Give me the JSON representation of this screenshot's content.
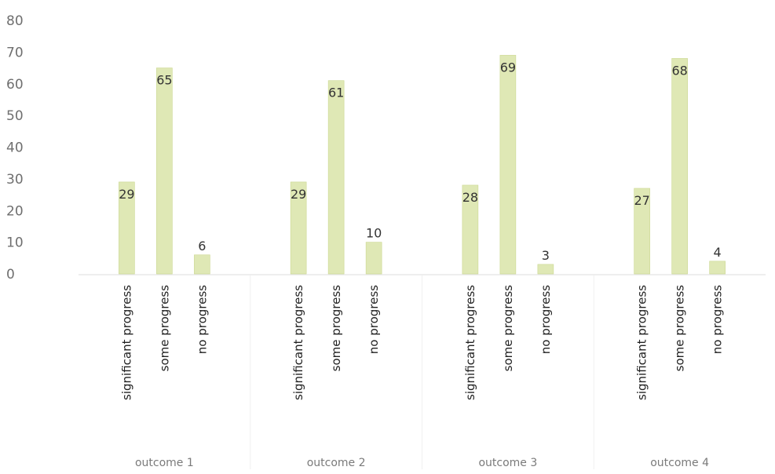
{
  "chart_data": {
    "type": "bar",
    "title": "",
    "xlabel": "",
    "ylabel": "",
    "ylim": [
      0,
      80
    ],
    "yticks": [
      0,
      10,
      20,
      30,
      40,
      50,
      60,
      70,
      80
    ],
    "grid": false,
    "legend": "none",
    "groups": [
      {
        "name": "outcome 1",
        "categories": [
          "significant progress",
          "some progress",
          "no progress"
        ],
        "values": [
          29,
          65,
          6
        ]
      },
      {
        "name": "outcome 2",
        "categories": [
          "significant progress",
          "some progress",
          "no progress"
        ],
        "values": [
          29,
          61,
          10
        ]
      },
      {
        "name": "outcome 3",
        "categories": [
          "significant progress",
          "some progress",
          "no progress"
        ],
        "values": [
          28,
          69,
          3
        ]
      },
      {
        "name": "outcome 4",
        "categories": [
          "significant progress",
          "some progress",
          "no progress"
        ],
        "values": [
          27,
          68,
          4
        ]
      }
    ],
    "colors": {
      "bar": "#dfe8b5",
      "bar_edge": "#cbd890",
      "axis": "#dddddd"
    }
  }
}
